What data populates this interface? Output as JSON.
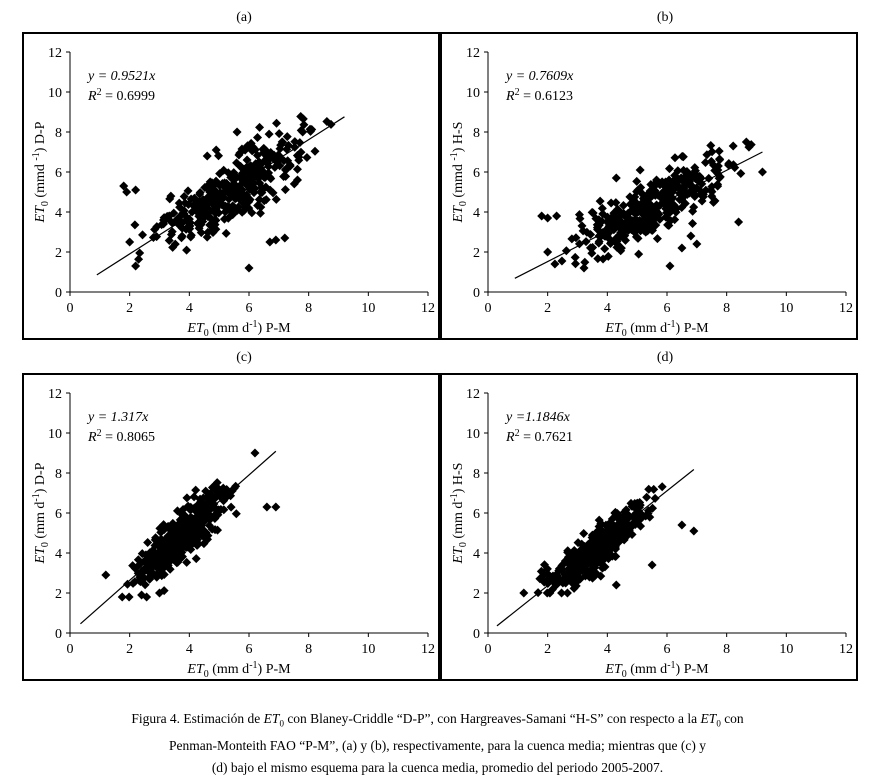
{
  "chart_data": [
    {
      "type": "scatter",
      "panel_label": "(a)",
      "xlim": [
        0,
        12
      ],
      "ylim": [
        0,
        12
      ],
      "xticks": [
        0,
        2,
        4,
        6,
        8,
        10,
        12
      ],
      "yticks": [
        0,
        2,
        4,
        6,
        8,
        10,
        12
      ],
      "xlabel": {
        "et": "ET",
        "sub": "0",
        "pre": " (mm d",
        "sup": "-1",
        "post": ") P-M"
      },
      "ylabel": {
        "et": "ET",
        "sub": "0",
        "pre": " (mmd ",
        "sup": "-1",
        "post": ") D-P"
      },
      "equation": "y = 0.9521x",
      "r2": {
        "r": "R",
        "sup": "2",
        "rest": " = 0.6999"
      },
      "fit": {
        "slope": 0.9521,
        "x_range": [
          0.9,
          9.2
        ]
      },
      "point_cloud": {
        "count": 380,
        "x_range": [
          1.8,
          9.2
        ],
        "slope": 0.95,
        "y_spread": 1.2,
        "y_min": 1.2,
        "y_max": 9.5
      },
      "outliers": [
        [
          1.8,
          5.3
        ],
        [
          1.9,
          5.0
        ],
        [
          2.2,
          5.1
        ],
        [
          6.0,
          1.2
        ],
        [
          6.7,
          2.5
        ],
        [
          7.2,
          2.7
        ],
        [
          6.9,
          2.6
        ],
        [
          4.6,
          6.8
        ],
        [
          4.9,
          7.1
        ],
        [
          5.6,
          8.0
        ],
        [
          7.8,
          8.0
        ],
        [
          2.0,
          2.5
        ],
        [
          2.2,
          1.3
        ]
      ]
    },
    {
      "type": "scatter",
      "panel_label": "(b)",
      "xlim": [
        0,
        12
      ],
      "ylim": [
        0,
        12
      ],
      "xticks": [
        0,
        2,
        4,
        6,
        8,
        10,
        12
      ],
      "yticks": [
        0,
        2,
        4,
        6,
        8,
        10,
        12
      ],
      "xlabel": {
        "et": "ET",
        "sub": "0",
        "pre": " (mm d",
        "sup": "-1",
        "post": ") P-M"
      },
      "ylabel": {
        "et": "ET",
        "sub": "0",
        "pre": " (mmd ",
        "sup": "-1",
        "post": ") H-S"
      },
      "equation": "y = 0.7609x",
      "r2": {
        "r": "R",
        "sup": "2",
        "rest": " = 0.6123"
      },
      "fit": {
        "slope": 0.7609,
        "x_range": [
          0.9,
          9.2
        ]
      },
      "point_cloud": {
        "count": 380,
        "x_range": [
          1.8,
          9.2
        ],
        "slope": 0.78,
        "y_spread": 1.0,
        "y_min": 1.2,
        "y_max": 7.5
      },
      "outliers": [
        [
          1.8,
          3.8
        ],
        [
          2.0,
          3.7
        ],
        [
          2.3,
          3.8
        ],
        [
          6.1,
          1.3
        ],
        [
          6.5,
          2.2
        ],
        [
          7.0,
          2.4
        ],
        [
          6.8,
          2.8
        ],
        [
          4.3,
          5.7
        ],
        [
          5.1,
          6.1
        ],
        [
          8.4,
          3.5
        ],
        [
          9.2,
          6.0
        ],
        [
          2.0,
          2.0
        ]
      ]
    },
    {
      "type": "scatter",
      "panel_label": "(c)",
      "xlim": [
        0,
        12
      ],
      "ylim": [
        0,
        12
      ],
      "xticks": [
        0,
        2,
        4,
        6,
        8,
        10,
        12
      ],
      "yticks": [
        0,
        2,
        4,
        6,
        8,
        10,
        12
      ],
      "xlabel": {
        "et": "ET",
        "sub": "0",
        "pre": " (mm d",
        "sup": "-1",
        "post": ") P-M"
      },
      "ylabel": {
        "et": "ET",
        "sub": "0",
        "pre": " (mm d",
        "sup": "-1",
        "post": ") D-P"
      },
      "equation": "y = 1.317x",
      "r2": {
        "r": "R",
        "sup": "2",
        "rest": " = 0.8065"
      },
      "fit": {
        "slope": 1.317,
        "x_range": [
          0.35,
          6.9
        ]
      },
      "point_cloud": {
        "count": 400,
        "x_range": [
          1.5,
          5.9
        ],
        "slope": 1.3,
        "y_spread": 0.9,
        "y_min": 1.8,
        "y_max": 9.0
      },
      "outliers": [
        [
          1.2,
          2.9
        ],
        [
          6.6,
          6.3
        ],
        [
          6.9,
          6.3
        ],
        [
          3.0,
          2.0
        ],
        [
          2.4,
          1.9
        ],
        [
          6.2,
          9.0
        ],
        [
          4.8,
          7.3
        ]
      ]
    },
    {
      "type": "scatter",
      "panel_label": "(d)",
      "xlim": [
        0,
        12
      ],
      "ylim": [
        0,
        12
      ],
      "xticks": [
        0,
        2,
        4,
        6,
        8,
        10,
        12
      ],
      "yticks": [
        0,
        2,
        4,
        6,
        8,
        10,
        12
      ],
      "xlabel": {
        "et": "ET",
        "sub": "0",
        "pre": " (mm d",
        "sup": "-1",
        "post": ") P-M"
      },
      "ylabel": {
        "et": "ET",
        "sub": "0",
        "pre": " (mm d",
        "sup": "-1",
        "post": ") H-S"
      },
      "equation": "y =1.1846x",
      "r2": {
        "r": "R",
        "sup": "2",
        "rest": " = 0.7621"
      },
      "fit": {
        "slope": 1.1846,
        "x_range": [
          0.3,
          6.9
        ]
      },
      "point_cloud": {
        "count": 400,
        "x_range": [
          1.3,
          5.9
        ],
        "slope": 1.15,
        "y_spread": 0.75,
        "y_min": 2.0,
        "y_max": 7.8
      },
      "outliers": [
        [
          1.2,
          2.0
        ],
        [
          6.5,
          5.4
        ],
        [
          6.9,
          5.1
        ],
        [
          4.3,
          2.4
        ],
        [
          5.5,
          3.4
        ],
        [
          2.6,
          2.5
        ]
      ]
    }
  ],
  "caption": {
    "line1_a": "Figura 4. Estimación de ",
    "et": "ET",
    "sub": "0",
    "line1_b": " con Blaney-Criddle “D-P”, con Hargreaves-Samani “H-S” con respecto a la ",
    "line1_c": " con",
    "line2": "Penman-Monteith FAO “P-M”, (a) y (b), respectivamente, para la cuenca media; mientras que (c) y",
    "line3": "(d) bajo el mismo esquema para la cuenca media, promedio del periodo 2005-2007."
  }
}
